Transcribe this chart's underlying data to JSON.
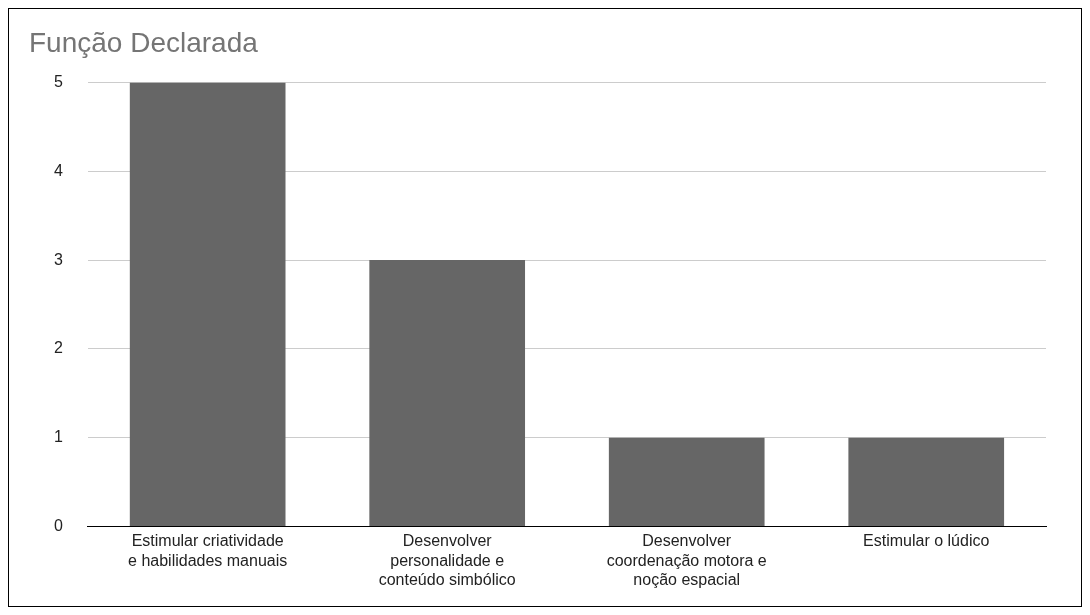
{
  "chart_data": {
    "type": "bar",
    "title": "Função Declarada",
    "categories": [
      "Estimular criatividade e habilidades manuais",
      "Desenvolver personalidade e conteúdo simbólico",
      "Desenvolver coordenação motora e noção espacial",
      "Estimular o lúdico"
    ],
    "values": [
      5,
      3,
      1,
      1
    ],
    "color": "#666666",
    "ylim": [
      0,
      5
    ],
    "yticks": [
      0,
      1,
      2,
      3,
      4,
      5
    ],
    "grid": "y",
    "legend": false
  }
}
